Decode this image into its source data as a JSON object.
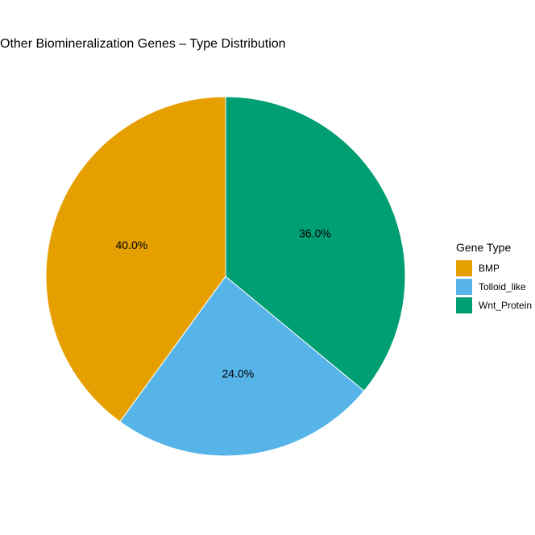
{
  "chart_data": {
    "type": "pie",
    "title": "Other Biomineralization Genes – Type Distribution",
    "legend_title": "Gene Type",
    "legend_position": "right",
    "slices": [
      {
        "label": "BMP",
        "value": 40.0,
        "display": "40.0%",
        "color": "#E69F00"
      },
      {
        "label": "Tolloid_like",
        "value": 24.0,
        "display": "24.0%",
        "color": "#56B4E9"
      },
      {
        "label": "Wnt_Protein",
        "value": 36.0,
        "display": "36.0%",
        "color": "#009E73"
      }
    ]
  }
}
